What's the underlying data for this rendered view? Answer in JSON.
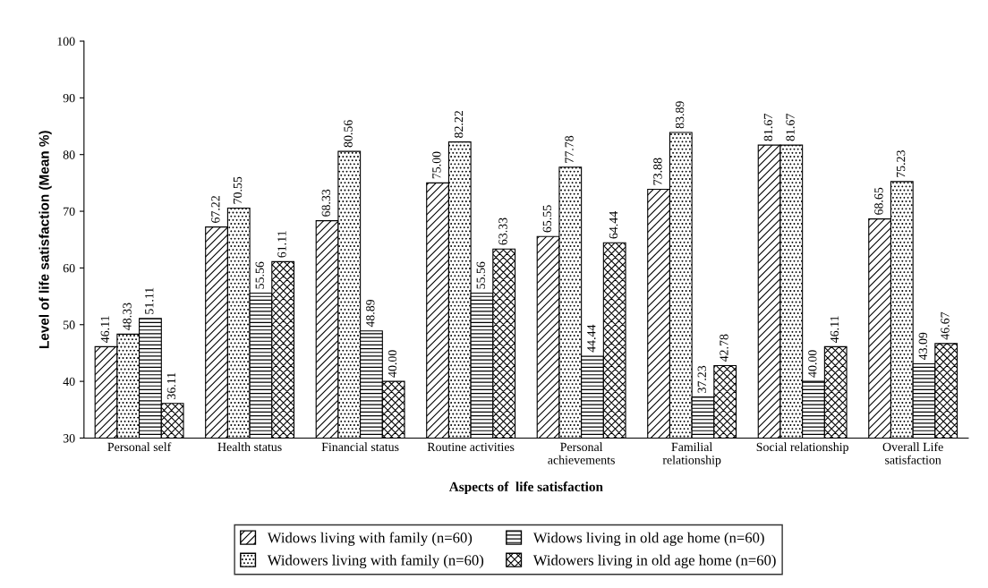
{
  "chart_data": {
    "type": "bar",
    "xlabel": "Aspects of  life satisfaction",
    "ylabel": "Level of life satisfaction (Mean %)",
    "categories": [
      "Personal self",
      "Health status",
      "Financial status",
      "Routine activities",
      "Personal\nachievements",
      "Familial\nrelationship",
      "Social relationship",
      "Overall Life\nsatisfaction"
    ],
    "series": [
      {
        "name": "Widows living with family (n=60)",
        "color": "#000000",
        "values": [
          46.11,
          67.22,
          68.33,
          75.0,
          65.55,
          73.88,
          81.67,
          68.65
        ],
        "value_labels": [
          "46.11",
          "67.22",
          "68.33",
          "75.00",
          "65.55",
          "73.88",
          "81.67",
          "68.65"
        ]
      },
      {
        "name": "Widowers living with family (n=60)",
        "color": "#000000",
        "values": [
          48.33,
          70.55,
          80.56,
          82.22,
          77.78,
          83.89,
          81.67,
          75.23
        ],
        "value_labels": [
          "48.33",
          "70.55",
          "80.56",
          "82.22",
          "77.78",
          "83.89",
          "81.67",
          "75.23"
        ]
      },
      {
        "name": "Widows living in old age home (n=60)",
        "color": "#000000",
        "values": [
          51.11,
          55.56,
          48.89,
          55.56,
          44.44,
          37.23,
          40.0,
          43.09
        ],
        "value_labels": [
          "51.11",
          "55.56",
          "48.89",
          "55.56",
          "44.44",
          "37.23",
          "40.00",
          "43.09"
        ]
      },
      {
        "name": "Widowers living in old age home (n=60)",
        "color": "#000000",
        "values": [
          36.11,
          61.11,
          40.0,
          63.33,
          64.44,
          42.78,
          46.11,
          46.67
        ],
        "value_labels": [
          "36.11",
          "61.11",
          "40.00",
          "63.33",
          "64.44",
          "42.78",
          "46.11",
          "46.67"
        ]
      }
    ],
    "ylim": [
      30,
      100
    ],
    "yticks": [
      30,
      40,
      50,
      60,
      70,
      80,
      90,
      100
    ],
    "grid": false,
    "legend": "bottom"
  }
}
